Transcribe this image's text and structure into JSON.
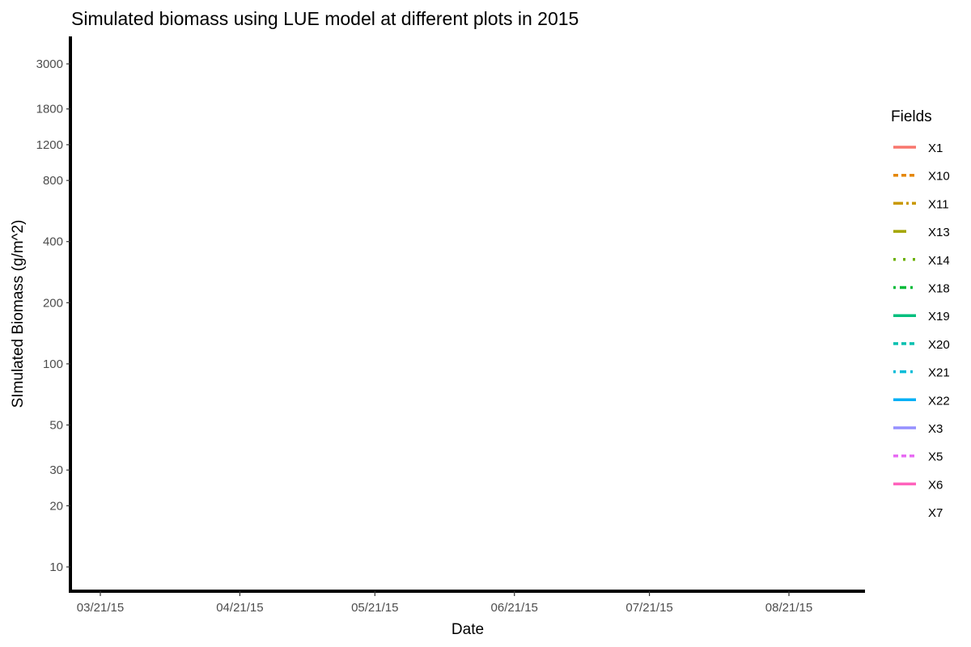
{
  "chart_data": {
    "type": "line",
    "title": "Simulated biomass using LUE model at different plots in 2015",
    "xlabel": "Date",
    "ylabel": "SImulated Biomass (g/m^2)",
    "y_scale": "log",
    "x_ticks": [
      "03/21/15",
      "04/21/15",
      "05/21/15",
      "06/21/15",
      "07/21/15",
      "08/21/15"
    ],
    "x_tick_dates": [
      "2015-03-21",
      "2015-04-21",
      "2015-05-21",
      "2015-06-21",
      "2015-07-21",
      "2015-08-21"
    ],
    "xlim": [
      "2015-03-18",
      "2015-09-08"
    ],
    "y_ticks": [
      10,
      20,
      30,
      50,
      100,
      200,
      400,
      800,
      1200,
      1800,
      3000
    ],
    "ylim": [
      7.5,
      4000
    ],
    "grid": false,
    "legend": {
      "title": "Fields",
      "position": "right",
      "entries": [
        {
          "name": "X1",
          "color": "#F8766D",
          "linetype": "solid"
        },
        {
          "name": "X10",
          "color": "#E58700",
          "linetype": "dashed"
        },
        {
          "name": "X11",
          "color": "#C99800",
          "linetype": "longdash-dot"
        },
        {
          "name": "X13",
          "color": "#A3A500",
          "linetype": "longdash"
        },
        {
          "name": "X14",
          "color": "#6BB100",
          "linetype": "dotted"
        },
        {
          "name": "X18",
          "color": "#00BA38",
          "linetype": "dot-dash"
        },
        {
          "name": "X19",
          "color": "#00BF7D",
          "linetype": "solid"
        },
        {
          "name": "X20",
          "color": "#00C0AF",
          "linetype": "dashed"
        },
        {
          "name": "X21",
          "color": "#00BCD8",
          "linetype": "dot-dash"
        },
        {
          "name": "X22",
          "color": "#00B0F6",
          "linetype": "solid"
        },
        {
          "name": "X3",
          "color": "#9590FF",
          "linetype": "solid"
        },
        {
          "name": "X5",
          "color": "#E76BF3",
          "linetype": "dashed"
        },
        {
          "name": "X6",
          "color": "#FF62BC",
          "linetype": "solid"
        },
        {
          "name": "X7",
          "color": "#FF6C91",
          "linetype": "blank"
        }
      ]
    },
    "series": [
      {
        "name": "X1",
        "values": []
      },
      {
        "name": "X10",
        "values": []
      },
      {
        "name": "X11",
        "values": []
      },
      {
        "name": "X13",
        "values": []
      },
      {
        "name": "X14",
        "values": []
      },
      {
        "name": "X18",
        "values": []
      },
      {
        "name": "X19",
        "values": []
      },
      {
        "name": "X20",
        "values": []
      },
      {
        "name": "X21",
        "values": []
      },
      {
        "name": "X22",
        "values": []
      },
      {
        "name": "X3",
        "values": []
      },
      {
        "name": "X5",
        "values": []
      },
      {
        "name": "X6",
        "values": []
      },
      {
        "name": "X7",
        "values": []
      }
    ]
  }
}
